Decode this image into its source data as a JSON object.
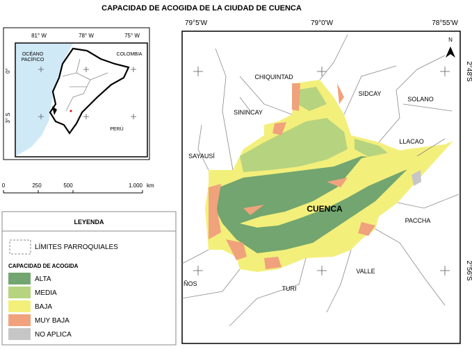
{
  "title": "CAPACIDAD DE ACOGIDA DE LA CIUDAD DE CUENCA",
  "inset": {
    "longitudes": [
      "81° W",
      "78° W",
      "75° W"
    ],
    "latitudes": [
      "0°",
      "3° S"
    ],
    "ocean": [
      "OCÉANO",
      "PACÍFICO"
    ],
    "countries": [
      "COLOMBIA",
      "PERÚ"
    ]
  },
  "scale_bar": {
    "labels": [
      "0",
      "250",
      "500",
      "1.000"
    ],
    "unit": "km"
  },
  "legend": {
    "title": "LEYENDA",
    "boundary": "LÍMITES PARROQUIALES",
    "subtitle": "CAPACIDAD DE ACOGIDA",
    "items": [
      {
        "label": "ALTA",
        "color": "#72a56f"
      },
      {
        "label": "MEDIA",
        "color": "#b6d37f"
      },
      {
        "label": "BAJA",
        "color": "#f3ef7b"
      },
      {
        "label": "MUY BAJA",
        "color": "#f0a27c"
      },
      {
        "label": "NO APLICA",
        "color": "#c6c6c6"
      }
    ]
  },
  "map": {
    "longitudes": [
      "79°5'W",
      "79°0'W",
      "78°55'W"
    ],
    "latitudes": [
      "2°48'S",
      "2°56'S"
    ],
    "north": "N",
    "parishes": [
      "CHIQUINTAD",
      "SIDCAY",
      "SOLANO",
      "SININCAY",
      "LLACAO",
      "SAYAUSÍ",
      "CUENCA",
      "PACCHA",
      "VALLE",
      "TURI",
      "ÑOS"
    ]
  }
}
